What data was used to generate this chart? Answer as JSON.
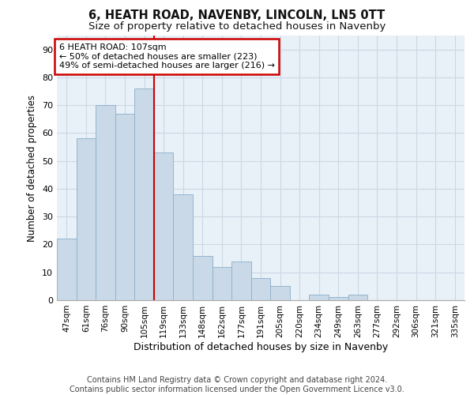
{
  "title": "6, HEATH ROAD, NAVENBY, LINCOLN, LN5 0TT",
  "subtitle": "Size of property relative to detached houses in Navenby",
  "xlabel": "Distribution of detached houses by size in Navenby",
  "ylabel": "Number of detached properties",
  "categories": [
    "47sqm",
    "61sqm",
    "76sqm",
    "90sqm",
    "105sqm",
    "119sqm",
    "133sqm",
    "148sqm",
    "162sqm",
    "177sqm",
    "191sqm",
    "205sqm",
    "220sqm",
    "234sqm",
    "249sqm",
    "263sqm",
    "277sqm",
    "292sqm",
    "306sqm",
    "321sqm",
    "335sqm"
  ],
  "values": [
    22,
    58,
    70,
    67,
    76,
    53,
    38,
    16,
    12,
    14,
    8,
    5,
    0,
    2,
    1,
    2,
    0,
    0,
    0,
    0,
    0
  ],
  "bar_color": "#c9d9e8",
  "bar_edge_color": "#8aafc8",
  "vline_x": 4.5,
  "vline_color": "#cc0000",
  "annotation_text": "6 HEATH ROAD: 107sqm\n← 50% of detached houses are smaller (223)\n49% of semi-detached houses are larger (216) →",
  "annotation_box_color": "#ffffff",
  "annotation_box_edge": "#cc0000",
  "ylim": [
    0,
    95
  ],
  "yticks": [
    0,
    10,
    20,
    30,
    40,
    50,
    60,
    70,
    80,
    90
  ],
  "grid_color": "#ccd8e5",
  "background_color": "#e8f0f8",
  "footer": "Contains HM Land Registry data © Crown copyright and database right 2024.\nContains public sector information licensed under the Open Government Licence v3.0.",
  "title_fontsize": 10.5,
  "subtitle_fontsize": 9.5,
  "footer_fontsize": 7.0,
  "annotation_fontsize": 8.0,
  "ylabel_fontsize": 8.5,
  "xlabel_fontsize": 9.0
}
